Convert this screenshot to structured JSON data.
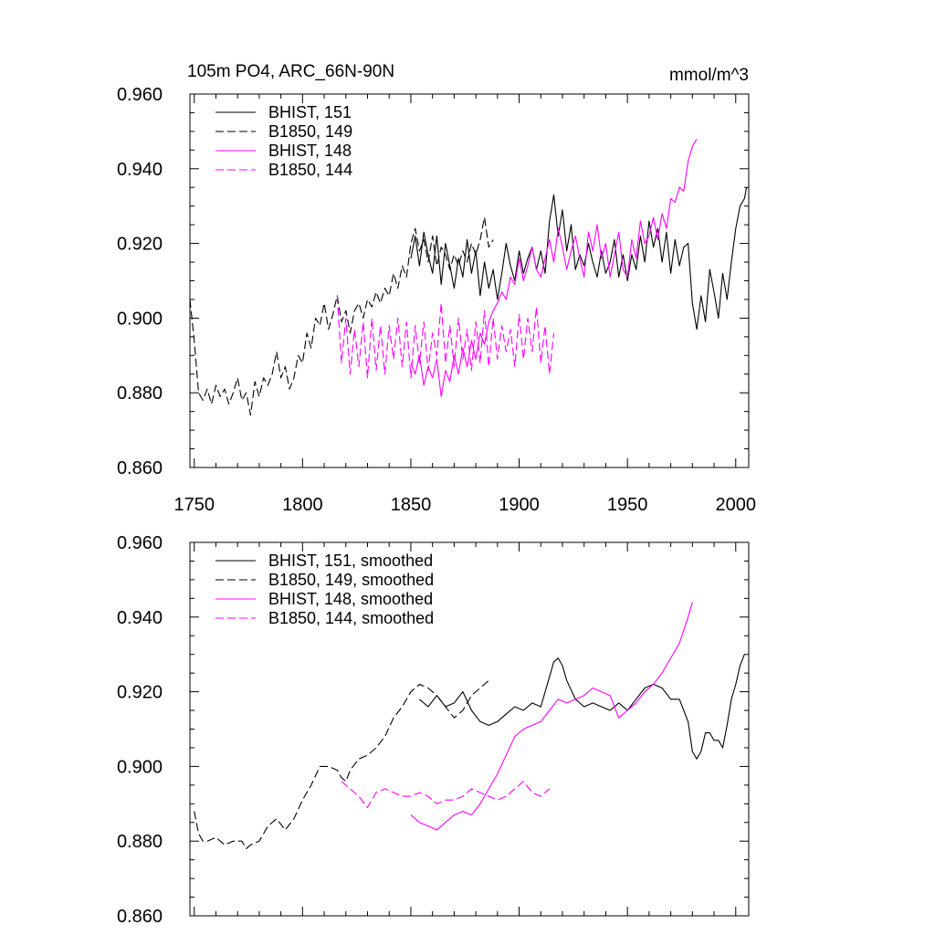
{
  "chart_data": [
    {
      "type": "line",
      "title": "105m PO4, ARC_66N-90N",
      "units": "mmol/m^3",
      "xlim": [
        1748,
        2006
      ],
      "ylim": [
        0.86,
        0.96
      ],
      "x_ticks": [
        "1750",
        "1800",
        "1850",
        "1900",
        "1950",
        "2000"
      ],
      "y_ticks": [
        "0.860",
        "0.880",
        "0.900",
        "0.920",
        "0.940",
        "0.960"
      ],
      "legend_position": "top-left",
      "grid": false,
      "series": [
        {
          "name": "BHIST, 151",
          "color": "#000000",
          "dash": "solid",
          "x": [
            1850,
            1852,
            1854,
            1856,
            1858,
            1860,
            1862,
            1864,
            1866,
            1868,
            1870,
            1872,
            1874,
            1876,
            1878,
            1880,
            1882,
            1884,
            1886,
            1888,
            1890,
            1892,
            1894,
            1896,
            1898,
            1900,
            1902,
            1904,
            1906,
            1908,
            1910,
            1912,
            1914,
            1916,
            1918,
            1920,
            1922,
            1924,
            1926,
            1928,
            1930,
            1932,
            1934,
            1936,
            1938,
            1940,
            1942,
            1944,
            1946,
            1948,
            1950,
            1952,
            1954,
            1956,
            1958,
            1960,
            1962,
            1964,
            1966,
            1968,
            1970,
            1972,
            1974,
            1976,
            1978,
            1980,
            1982,
            1984,
            1986,
            1988,
            1990,
            1992,
            1994,
            1996,
            1998,
            2000,
            2002,
            2004,
            2005
          ],
          "y": [
            0.916,
            0.922,
            0.914,
            0.923,
            0.917,
            0.912,
            0.922,
            0.909,
            0.92,
            0.914,
            0.908,
            0.916,
            0.911,
            0.921,
            0.912,
            0.918,
            0.906,
            0.915,
            0.908,
            0.913,
            0.905,
            0.912,
            0.92,
            0.914,
            0.91,
            0.918,
            0.912,
            0.916,
            0.919,
            0.913,
            0.918,
            0.912,
            0.926,
            0.933,
            0.922,
            0.929,
            0.918,
            0.925,
            0.913,
            0.917,
            0.914,
            0.92,
            0.915,
            0.911,
            0.918,
            0.912,
            0.915,
            0.921,
            0.911,
            0.917,
            0.91,
            0.917,
            0.913,
            0.922,
            0.915,
            0.926,
            0.919,
            0.924,
            0.915,
            0.923,
            0.912,
            0.921,
            0.914,
            0.919,
            0.92,
            0.904,
            0.897,
            0.906,
            0.899,
            0.913,
            0.907,
            0.9,
            0.912,
            0.905,
            0.915,
            0.924,
            0.93,
            0.932,
            0.935
          ]
        },
        {
          "name": "B1850, 149",
          "color": "#000000",
          "dash": "dashed",
          "x": [
            1748,
            1750,
            1752,
            1754,
            1756,
            1758,
            1760,
            1762,
            1764,
            1766,
            1768,
            1770,
            1772,
            1774,
            1776,
            1778,
            1780,
            1782,
            1784,
            1786,
            1788,
            1790,
            1792,
            1794,
            1796,
            1798,
            1800,
            1802,
            1804,
            1806,
            1808,
            1810,
            1812,
            1814,
            1816,
            1818,
            1820,
            1822,
            1824,
            1826,
            1828,
            1830,
            1832,
            1834,
            1836,
            1838,
            1840,
            1842,
            1844,
            1846,
            1848,
            1850,
            1852,
            1854,
            1856,
            1858,
            1860,
            1862,
            1864,
            1866,
            1868,
            1870,
            1872,
            1874,
            1876,
            1878,
            1880,
            1882,
            1884,
            1886,
            1888
          ],
          "y": [
            0.905,
            0.894,
            0.88,
            0.878,
            0.881,
            0.877,
            0.882,
            0.879,
            0.881,
            0.877,
            0.88,
            0.884,
            0.878,
            0.88,
            0.874,
            0.883,
            0.879,
            0.884,
            0.882,
            0.885,
            0.891,
            0.884,
            0.887,
            0.881,
            0.884,
            0.89,
            0.888,
            0.896,
            0.892,
            0.9,
            0.898,
            0.904,
            0.897,
            0.901,
            0.906,
            0.899,
            0.902,
            0.896,
            0.902,
            0.904,
            0.9,
            0.905,
            0.903,
            0.907,
            0.904,
            0.908,
            0.906,
            0.912,
            0.908,
            0.914,
            0.911,
            0.92,
            0.924,
            0.918,
            0.921,
            0.915,
            0.922,
            0.914,
            0.919,
            0.917,
            0.913,
            0.917,
            0.914,
            0.918,
            0.915,
            0.92,
            0.917,
            0.921,
            0.927,
            0.919,
            0.921
          ]
        },
        {
          "name": "BHIST, 148",
          "color": "#ff00ff",
          "dash": "solid",
          "x": [
            1850,
            1852,
            1854,
            1856,
            1858,
            1860,
            1862,
            1864,
            1866,
            1868,
            1870,
            1872,
            1874,
            1876,
            1878,
            1880,
            1882,
            1884,
            1886,
            1888,
            1890,
            1892,
            1894,
            1896,
            1898,
            1900,
            1902,
            1904,
            1906,
            1908,
            1910,
            1912,
            1914,
            1916,
            1918,
            1920,
            1922,
            1924,
            1926,
            1928,
            1930,
            1932,
            1934,
            1936,
            1938,
            1940,
            1942,
            1944,
            1946,
            1948,
            1950,
            1952,
            1954,
            1956,
            1958,
            1960,
            1962,
            1964,
            1966,
            1968,
            1970,
            1972,
            1974,
            1976,
            1978,
            1980,
            1982
          ],
          "y": [
            0.888,
            0.885,
            0.89,
            0.882,
            0.887,
            0.884,
            0.889,
            0.879,
            0.886,
            0.883,
            0.89,
            0.885,
            0.892,
            0.887,
            0.894,
            0.889,
            0.896,
            0.893,
            0.899,
            0.902,
            0.904,
            0.907,
            0.905,
            0.911,
            0.909,
            0.916,
            0.91,
            0.914,
            0.919,
            0.913,
            0.911,
            0.916,
            0.921,
            0.915,
            0.924,
            0.919,
            0.913,
            0.918,
            0.922,
            0.916,
            0.911,
            0.923,
            0.918,
            0.925,
            0.916,
            0.92,
            0.911,
            0.917,
            0.923,
            0.913,
            0.911,
            0.921,
            0.916,
            0.926,
            0.92,
            0.922,
            0.927,
            0.921,
            0.928,
            0.924,
            0.932,
            0.931,
            0.935,
            0.934,
            0.942,
            0.946,
            0.948
          ]
        },
        {
          "name": "B1850, 144",
          "color": "#ff00ff",
          "dash": "dashed",
          "x": [
            1816,
            1818,
            1820,
            1822,
            1824,
            1826,
            1828,
            1830,
            1832,
            1834,
            1836,
            1838,
            1840,
            1842,
            1844,
            1846,
            1848,
            1850,
            1852,
            1854,
            1856,
            1858,
            1860,
            1862,
            1864,
            1866,
            1868,
            1870,
            1872,
            1874,
            1876,
            1878,
            1880,
            1882,
            1884,
            1886,
            1888,
            1890,
            1892,
            1894,
            1896,
            1898,
            1900,
            1902,
            1904,
            1906,
            1908,
            1910,
            1912,
            1914,
            1916
          ],
          "y": [
            0.906,
            0.888,
            0.9,
            0.885,
            0.897,
            0.887,
            0.899,
            0.884,
            0.9,
            0.886,
            0.898,
            0.885,
            0.898,
            0.889,
            0.9,
            0.887,
            0.899,
            0.884,
            0.898,
            0.888,
            0.899,
            0.886,
            0.896,
            0.89,
            0.904,
            0.888,
            0.898,
            0.887,
            0.9,
            0.889,
            0.897,
            0.886,
            0.899,
            0.888,
            0.902,
            0.887,
            0.9,
            0.889,
            0.898,
            0.891,
            0.897,
            0.887,
            0.901,
            0.889,
            0.9,
            0.891,
            0.903,
            0.888,
            0.898,
            0.885,
            0.896
          ]
        }
      ]
    },
    {
      "type": "line",
      "xlim": [
        1748,
        2006
      ],
      "ylim": [
        0.86,
        0.96
      ],
      "y_ticks": [
        "0.860",
        "0.880",
        "0.900",
        "0.920",
        "0.940",
        "0.960"
      ],
      "legend_position": "top-left",
      "grid": false,
      "series": [
        {
          "name": "BHIST, 151, smoothed",
          "color": "#000000",
          "dash": "solid",
          "x": [
            1854,
            1858,
            1862,
            1866,
            1870,
            1874,
            1878,
            1882,
            1886,
            1890,
            1894,
            1898,
            1902,
            1906,
            1910,
            1914,
            1916,
            1918,
            1920,
            1922,
            1926,
            1930,
            1934,
            1938,
            1942,
            1946,
            1950,
            1954,
            1958,
            1962,
            1966,
            1970,
            1974,
            1978,
            1980,
            1982,
            1984,
            1986,
            1988,
            1990,
            1992,
            1994,
            1996,
            1998,
            2000,
            2002,
            2004
          ],
          "y": [
            0.918,
            0.916,
            0.919,
            0.916,
            0.917,
            0.92,
            0.915,
            0.912,
            0.911,
            0.912,
            0.914,
            0.916,
            0.915,
            0.917,
            0.916,
            0.924,
            0.928,
            0.929,
            0.927,
            0.923,
            0.918,
            0.916,
            0.917,
            0.916,
            0.915,
            0.917,
            0.915,
            0.918,
            0.921,
            0.922,
            0.921,
            0.918,
            0.918,
            0.912,
            0.904,
            0.902,
            0.904,
            0.909,
            0.909,
            0.907,
            0.907,
            0.905,
            0.911,
            0.918,
            0.922,
            0.927,
            0.93
          ]
        },
        {
          "name": "B1850, 149, smoothed",
          "color": "#000000",
          "dash": "dashed",
          "x": [
            1750,
            1752,
            1754,
            1756,
            1760,
            1764,
            1768,
            1772,
            1774,
            1776,
            1780,
            1784,
            1788,
            1792,
            1796,
            1800,
            1804,
            1808,
            1812,
            1816,
            1818,
            1820,
            1822,
            1826,
            1830,
            1834,
            1838,
            1842,
            1846,
            1850,
            1854,
            1858,
            1862,
            1866,
            1870,
            1874,
            1878,
            1882,
            1886
          ],
          "y": [
            0.888,
            0.882,
            0.88,
            0.88,
            0.881,
            0.879,
            0.88,
            0.88,
            0.878,
            0.879,
            0.88,
            0.884,
            0.886,
            0.883,
            0.886,
            0.891,
            0.895,
            0.9,
            0.9,
            0.899,
            0.897,
            0.896,
            0.899,
            0.902,
            0.903,
            0.905,
            0.908,
            0.913,
            0.916,
            0.92,
            0.922,
            0.921,
            0.919,
            0.916,
            0.913,
            0.915,
            0.919,
            0.921,
            0.923
          ]
        },
        {
          "name": "BHIST, 148, smoothed",
          "color": "#ff00ff",
          "dash": "solid",
          "x": [
            1850,
            1854,
            1858,
            1862,
            1866,
            1870,
            1874,
            1878,
            1882,
            1886,
            1890,
            1894,
            1898,
            1902,
            1906,
            1910,
            1914,
            1918,
            1922,
            1926,
            1930,
            1934,
            1938,
            1942,
            1946,
            1950,
            1954,
            1958,
            1962,
            1966,
            1970,
            1974,
            1978,
            1980
          ],
          "y": [
            0.887,
            0.885,
            0.884,
            0.883,
            0.885,
            0.887,
            0.888,
            0.887,
            0.89,
            0.894,
            0.898,
            0.903,
            0.908,
            0.91,
            0.911,
            0.912,
            0.915,
            0.918,
            0.917,
            0.918,
            0.919,
            0.921,
            0.92,
            0.919,
            0.913,
            0.915,
            0.917,
            0.92,
            0.922,
            0.925,
            0.929,
            0.933,
            0.94,
            0.944
          ]
        },
        {
          "name": "B1850, 144, smoothed",
          "color": "#ff00ff",
          "dash": "dashed",
          "x": [
            1818,
            1822,
            1826,
            1830,
            1834,
            1838,
            1842,
            1846,
            1850,
            1854,
            1858,
            1862,
            1866,
            1870,
            1874,
            1878,
            1882,
            1886,
            1890,
            1894,
            1898,
            1902,
            1906,
            1910,
            1914
          ],
          "y": [
            0.896,
            0.894,
            0.892,
            0.889,
            0.893,
            0.894,
            0.893,
            0.892,
            0.892,
            0.893,
            0.892,
            0.89,
            0.891,
            0.891,
            0.892,
            0.894,
            0.893,
            0.892,
            0.891,
            0.892,
            0.894,
            0.896,
            0.893,
            0.892,
            0.894
          ]
        }
      ]
    }
  ]
}
